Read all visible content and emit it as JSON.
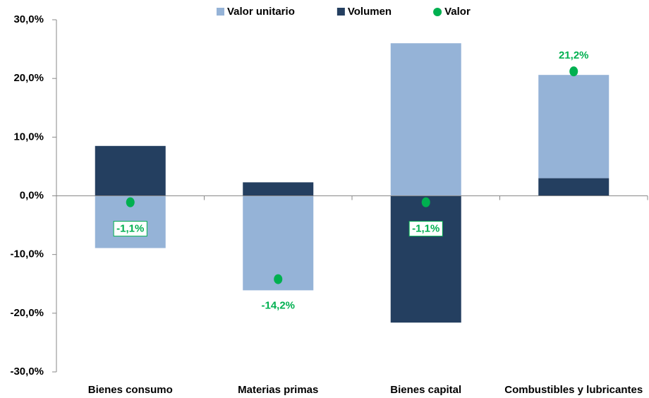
{
  "chart_data": {
    "type": "bar",
    "categories": [
      "Bienes consumo",
      "Materias primas",
      "Bienes capital",
      "Combustibles y lubricantes"
    ],
    "series": [
      {
        "name": "Valor unitario",
        "color": "#95b3d7",
        "values": [
          -8.9,
          -16.1,
          26.0,
          17.6
        ]
      },
      {
        "name": "Volumen",
        "color": "#243f60",
        "values": [
          8.5,
          2.3,
          -21.6,
          3.0
        ]
      }
    ],
    "points": {
      "name": "Valor",
      "color": "#00b050",
      "values": [
        -1.1,
        -14.2,
        -1.1,
        21.2
      ],
      "value_labels": [
        "-1,1%",
        "-14,2%",
        "-1,1%",
        "21,2%"
      ]
    },
    "ylim": [
      -30,
      30
    ],
    "yticks": [
      {
        "value": -30,
        "label": "-30,0%"
      },
      {
        "value": -20,
        "label": "-20,0%"
      },
      {
        "value": -10,
        "label": "-10,0%"
      },
      {
        "value": 0,
        "label": "0,0%"
      },
      {
        "value": 10,
        "label": "10,0%"
      },
      {
        "value": 20,
        "label": "20,0%"
      },
      {
        "value": 30,
        "label": "30,0%"
      }
    ],
    "legend": "top"
  }
}
